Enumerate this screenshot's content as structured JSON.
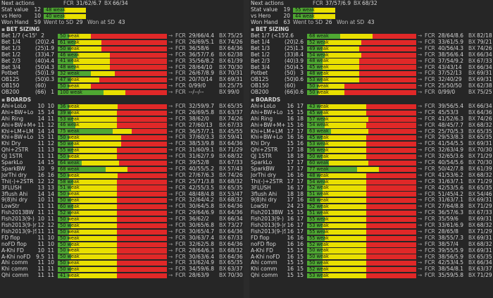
{
  "panels": [
    {
      "next": {
        "label": "Next actions",
        "fcr": "31/62/6.7",
        "bx": "66/34"
      },
      "stat": {
        "label": "Stat value",
        "n": "12",
        "weak": "48 weak"
      },
      "hero": {
        "label": "vs Hero",
        "n": "10",
        "weak": "40 weak"
      },
      "won": {
        "label": "Won Hand",
        "n": "59",
        "went_label": "Went to SD",
        "went": "29",
        "sd_label": "Won at SD",
        "sd": "43"
      },
      "bet_title": "BET SIZING",
      "bets": [
        {
          "label": "Bet 1/7 (<15%)",
          "n1": "2",
          "n2": "",
          "weak": "50 weak",
          "g": 0.1,
          "y": 0.2,
          "fcr": "29/66/4.4",
          "bx": "75/25"
        },
        {
          "label": "Bet 1/4",
          "n1": "(20)",
          "n2": "2.4",
          "weak": "61 weak",
          "g": 0.16,
          "y": 0.24,
          "fcr": "26/69/5.1",
          "bx": "74/26"
        },
        {
          "label": "Bet 1/3",
          "n1": "(25)",
          "n2": "1.9",
          "weak": "50 weak",
          "g": 0.12,
          "y": 0.28,
          "fcr": "36/58/6",
          "bx": "64/36"
        },
        {
          "label": "Bet 1/2",
          "n1": "(33)",
          "n2": "4.7",
          "weak": "46 weak",
          "g": 0.18,
          "y": 0.3,
          "fcr": "36/57/7.6",
          "bx": "62/38"
        },
        {
          "label": "Bet 2/3",
          "n1": "(40)",
          "n2": "4.4",
          "weak": "41 weak",
          "g": 0.14,
          "y": 0.34,
          "fcr": "35/56/8.2",
          "bx": "61/39"
        },
        {
          "label": "Bet 3/4",
          "n1": "(50)",
          "n2": "4.3",
          "weak": "48 weak",
          "g": 0.16,
          "y": 0.32,
          "fcr": "28/64/10",
          "bx": "70/30"
        },
        {
          "label": "Potbet",
          "n1": "(50)",
          "n2": "1.9",
          "weak": "32 weak",
          "g": 0.3,
          "y": 0.22,
          "fcr": "26/67/8.9",
          "bx": "70/31"
        },
        {
          "label": "OB125",
          "n1": "(50)",
          "n2": "0.3",
          "weak": "47 weak",
          "g": 0.12,
          "y": 0.26,
          "fcr": "20/70/14",
          "bx": "69/31"
        },
        {
          "label": "OB150",
          "n1": "(60)",
          "n2": "",
          "weak": "50 weak",
          "g": 0.1,
          "y": 0.2,
          "fcr": "0/99/0",
          "bx": "25/75"
        },
        {
          "label": "OB200",
          "n1": "(66)",
          "n2": "1",
          "weak": "100 weak",
          "g": 0.42,
          "y": 0.2,
          "fcr": "--/--/--",
          "bx": "99/0"
        }
      ],
      "boards_title": "BOARDS",
      "boards": [
        {
          "label": "Ahi+LoLo",
          "n1": "10",
          "n2": "10",
          "weak": "36 weak",
          "g": 0.1,
          "y": 0.45,
          "fcr": "32/59/9.7",
          "bx": "65/35"
        },
        {
          "label": "Ahi+BW+Lo",
          "n1": "15",
          "n2": "14",
          "weak": "39 weak",
          "g": 0.12,
          "y": 0.42,
          "fcr": "26/69/5.8",
          "bx": "63/37"
        },
        {
          "label": "Ahi Ring",
          "n1": "14",
          "n2": "11",
          "weak": "53 weak",
          "g": 0.14,
          "y": 0.4,
          "fcr": "38/62/0",
          "bx": "74/26"
        },
        {
          "label": "Ahi+BW+M+FD",
          "n1": "11",
          "n2": "12",
          "weak": "46 weak",
          "g": 0.16,
          "y": 0.38,
          "fcr": "27/60/13",
          "bx": "67/33"
        },
        {
          "label": "Khi+LM+LM",
          "n1": "14",
          "n2": "14",
          "weak": "75 weak",
          "g": 0.5,
          "y": 0.18,
          "fcr": "36/57/7.1",
          "bx": "45/55"
        },
        {
          "label": "Khi+BW+Lo",
          "n1": "15",
          "n2": "11",
          "weak": "50 weak",
          "g": 0.1,
          "y": 0.48,
          "fcr": "37/60/3.3",
          "bx": "59/41"
        },
        {
          "label": "Khi Dry",
          "n1": "11",
          "n2": "12",
          "weak": "50 weak",
          "g": 0.14,
          "y": 0.44,
          "fcr": "38/53/9.8",
          "bx": "64/36"
        },
        {
          "label": "Qhi+2STR",
          "n1": "11",
          "n2": "13",
          "weak": "55 weak",
          "g": 0.14,
          "y": 0.4,
          "fcr": "31/60/9.1",
          "bx": "71/29"
        },
        {
          "label": "QJ 1STR",
          "n1": "11",
          "n2": "11",
          "weak": "50 weak",
          "g": 0.1,
          "y": 0.44,
          "fcr": "31/62/7.9",
          "bx": "68/32"
        },
        {
          "label": "SparkLo",
          "n1": "14",
          "n2": "15",
          "weak": "64 weak",
          "g": 0.22,
          "y": 0.34,
          "fcr": "39/52/8",
          "bx": "67/33"
        },
        {
          "label": "SparkBW",
          "n1": "10",
          "n2": "9",
          "weak": "68 weak",
          "g": 0.44,
          "y": 0.2,
          "fcr": "40/55/5.2",
          "bx": "57/43"
        },
        {
          "label": "JorThi dry",
          "n1": "16",
          "n2": "16",
          "weak": "50 weak",
          "g": 0.1,
          "y": 0.45,
          "fcr": "27/67/6.3",
          "bx": "74/26"
        },
        {
          "label": "Thi(-)+2STR",
          "n1": "12",
          "n2": "12",
          "weak": "58 weak",
          "g": 0.14,
          "y": 0.4,
          "fcr": "25/71/3.8",
          "bx": "68/32"
        },
        {
          "label": "3FLUSH",
          "n1": "13",
          "n2": "13",
          "weak": "51 weak",
          "g": 0.12,
          "y": 0.42,
          "fcr": "42/55/3.5",
          "bx": "65/35"
        },
        {
          "label": "3flush Ahi",
          "n1": "14",
          "n2": "14",
          "weak": "50 weak",
          "g": 0.1,
          "y": 0.44,
          "fcr": "48/48/4.8",
          "bx": "53/47"
        },
        {
          "label": "9(8)hi dry",
          "n1": "10",
          "n2": "11",
          "weak": "50 weak",
          "g": 0.12,
          "y": 0.42,
          "fcr": "32/64/4.2",
          "bx": "68/32"
        },
        {
          "label": "LowStr",
          "n1": "11",
          "n2": "11",
          "weak": "60 weak",
          "g": 0.14,
          "y": 0.4,
          "fcr": "30/64/5.8",
          "bx": "64/36"
        },
        {
          "label": "Fish2013BW",
          "n1": "11",
          "n2": "11",
          "weak": "52 weak",
          "g": 0.12,
          "y": 0.42,
          "fcr": "29/64/6.9",
          "bx": "64/36"
        },
        {
          "label": "Fish2013(9-)",
          "n1": "10",
          "n2": "11",
          "weak": "50 weak",
          "g": 0.1,
          "y": 0.44,
          "fcr": "36/62/2",
          "bx": "66/34"
        },
        {
          "label": "Fish2013(9-)noSTR",
          "n1": "12",
          "n2": "12",
          "weak": "50 weak",
          "g": 0.12,
          "y": 0.42,
          "fcr": "30/65/6.8",
          "bx": "73/27"
        },
        {
          "label": "Fish2013(9-)STR",
          "n1": "11",
          "n2": "11",
          "weak": "50 weak",
          "g": 0.1,
          "y": 0.44,
          "fcr": "30/65/4.7",
          "bx": "64/36"
        },
        {
          "label": "FD flop",
          "n1": "11",
          "n2": "10",
          "weak": "50 weak",
          "g": 0.1,
          "y": 0.44,
          "fcr": "30/63/7.4",
          "bx": "67/33"
        },
        {
          "label": "noFD flop",
          "n1": "11",
          "n2": "10",
          "weak": "50 weak",
          "g": 0.12,
          "y": 0.42,
          "fcr": "32/62/5.8",
          "bx": "64/36"
        },
        {
          "label": "A-Khi FD",
          "n1": "10",
          "n2": "11",
          "weak": "50 weak",
          "g": 0.1,
          "y": 0.44,
          "fcr": "28/64/6.3",
          "bx": "68/32"
        },
        {
          "label": "A-Khi noFD",
          "n1": "9.5",
          "n2": "11",
          "weak": "50 weak",
          "g": 0.12,
          "y": 0.42,
          "fcr": "30/63/6.4",
          "bx": "64/36"
        },
        {
          "label": "Ahi comm",
          "n1": "11",
          "n2": "10",
          "weak": "50 weak",
          "g": 0.1,
          "y": 0.44,
          "fcr": "33/62/4.9",
          "bx": "65/35"
        },
        {
          "label": "Khi comm",
          "n1": "11",
          "n2": "11",
          "weak": "50 weak",
          "g": 0.12,
          "y": 0.42,
          "fcr": "34/59/6.8",
          "bx": "63/37"
        },
        {
          "label": "Qhi comm",
          "n1": "11",
          "n2": "11",
          "weak": "41 weak",
          "g": 0.1,
          "y": 0.44,
          "fcr": "28/63/9",
          "bx": "70/30"
        }
      ]
    },
    {
      "next": {
        "label": "Next actions",
        "fcr": "37/57/6.9",
        "bx": "68/32"
      },
      "stat": {
        "label": "Stat value",
        "n": "19",
        "weak": "55 weak"
      },
      "hero": {
        "label": "vs Hero",
        "n": "20",
        "weak": "44 weak"
      },
      "won": {
        "label": "Won Hand",
        "n": "63",
        "went_label": "Went to SD",
        "went": "26",
        "sd_label": "Won at SD",
        "sd": "43"
      },
      "bet_title": "BET SIZING",
      "bets": [
        {
          "label": "Bet 1/7 (<15%)",
          "n1": "2.6",
          "n2": "",
          "weak": "68 weak",
          "g": 0.3,
          "y": 0.3,
          "fcr": "28/64/8.6",
          "bx": "82/18"
        },
        {
          "label": "Bet 1/4",
          "n1": "(20)",
          "n2": "2.6",
          "weak": "52 weak",
          "g": 0.16,
          "y": 0.34,
          "fcr": "33/61/5.9",
          "bx": "79/21"
        },
        {
          "label": "Bet 1/3",
          "n1": "(25)",
          "n2": "1.3",
          "weak": "49 weak",
          "g": 0.14,
          "y": 0.34,
          "fcr": "40/56/4.3",
          "bx": "74/26"
        },
        {
          "label": "Bet 1/2",
          "n1": "(33)",
          "n2": "8.4",
          "weak": "54 weak",
          "g": 0.16,
          "y": 0.34,
          "fcr": "38/56/6.4",
          "bx": "66/34"
        },
        {
          "label": "Bet 2/3",
          "n1": "(40)",
          "n2": "3.9",
          "weak": "48 weak",
          "g": 0.14,
          "y": 0.34,
          "fcr": "37/54/9.2",
          "bx": "67/33"
        },
        {
          "label": "Bet 3/4",
          "n1": "(50)",
          "n2": "4.5",
          "weak": "45 weak",
          "g": 0.14,
          "y": 0.34,
          "fcr": "43/43/14",
          "bx": "66/34"
        },
        {
          "label": "Potbet",
          "n1": "(50)",
          "n2": "3",
          "weak": "48 weak",
          "g": 0.14,
          "y": 0.34,
          "fcr": "37/52/13",
          "bx": "69/31"
        },
        {
          "label": "OB125",
          "n1": "(50)",
          "n2": "0.6",
          "weak": "53 weak",
          "g": 0.14,
          "y": 0.34,
          "fcr": "32/40/29",
          "bx": "69/31"
        },
        {
          "label": "OB150",
          "n1": "(60)",
          "n2": "",
          "weak": "50 weak",
          "g": 0.1,
          "y": 0.24,
          "fcr": "25/50/50",
          "bx": "62/38"
        },
        {
          "label": "OB200",
          "n1": "(66)",
          "n2": "0.6",
          "weak": "50 weak",
          "g": 0.1,
          "y": 0.24,
          "fcr": "0/99/0",
          "bx": "75/25"
        }
      ],
      "boards_title": "BOARDS",
      "boards": [
        {
          "label": "Ahi+LoLo",
          "n1": "16",
          "n2": "17",
          "weak": "43 weak",
          "g": 0.12,
          "y": 0.42,
          "fcr": "39/56/5.4",
          "bx": "66/34"
        },
        {
          "label": "Ahi+BW+Lo",
          "n1": "15",
          "n2": "15",
          "weak": "45 weak",
          "g": 0.14,
          "y": 0.4,
          "fcr": "45/53/3",
          "bx": "64/36"
        },
        {
          "label": "Ahi Ring",
          "n1": "16",
          "n2": "18",
          "weak": "57 weak",
          "g": 0.16,
          "y": 0.4,
          "fcr": "41/52/6.3",
          "bx": "74/26"
        },
        {
          "label": "Ahi+BW+M+FD",
          "n1": "15",
          "n2": "16",
          "weak": "54 weak",
          "g": 0.16,
          "y": 0.38,
          "fcr": "48/45/7.7",
          "bx": "68/32"
        },
        {
          "label": "Khi+LM+LM",
          "n1": "17",
          "n2": "17",
          "weak": "63 weak",
          "g": 0.22,
          "y": 0.34,
          "fcr": "25/70/5.3",
          "bx": "65/35"
        },
        {
          "label": "Khi+BW+Lo",
          "n1": "16",
          "n2": "16",
          "weak": "45 weak",
          "g": 0.14,
          "y": 0.4,
          "fcr": "29/53/8.3",
          "bx": "65/35"
        },
        {
          "label": "Khi Dry",
          "n1": "15",
          "n2": "16",
          "weak": "53 weak",
          "g": 0.16,
          "y": 0.38,
          "fcr": "41/54/5.5",
          "bx": "69/31"
        },
        {
          "label": "Qhi+2STR",
          "n1": "17",
          "n2": "18",
          "weak": "56 weak",
          "g": 0.16,
          "y": 0.38,
          "fcr": "32/63/4.9",
          "bx": "70/30"
        },
        {
          "label": "QJ 1STR",
          "n1": "18",
          "n2": "18",
          "weak": "50 weak",
          "g": 0.14,
          "y": 0.4,
          "fcr": "32/65/3.6",
          "bx": "71/29"
        },
        {
          "label": "SparkLo",
          "n1": "17",
          "n2": "17",
          "weak": "60 weak",
          "g": 0.2,
          "y": 0.36,
          "fcr": "40/54/5.6",
          "bx": "70/30"
        },
        {
          "label": "SparkBW",
          "n1": "17",
          "n2": "17",
          "weak": "77 weak",
          "g": 0.46,
          "y": 0.2,
          "fcr": "50/42/7.8",
          "bx": "61/39"
        },
        {
          "label": "JorThi dry",
          "n1": "16",
          "n2": "16",
          "weak": "48 weak",
          "g": 0.12,
          "y": 0.42,
          "fcr": "41/53/6.2",
          "bx": "68/32"
        },
        {
          "label": "Thi(-)+2STR",
          "n1": "17",
          "n2": "17",
          "weak": "54 weak",
          "g": 0.16,
          "y": 0.38,
          "fcr": "31/63/7.1",
          "bx": "71/29"
        },
        {
          "label": "3FLUSH",
          "n1": "16",
          "n2": "17",
          "weak": "52 weak",
          "g": 0.14,
          "y": 0.4,
          "fcr": "42/53/5.6",
          "bx": "65/35"
        },
        {
          "label": "3flush Ahi",
          "n1": "18",
          "n2": "18",
          "weak": "51 weak",
          "g": 0.14,
          "y": 0.4,
          "fcr": "51/45/4.2",
          "bx": "54/46"
        },
        {
          "label": "9(8)hi dry",
          "n1": "17",
          "n2": "16",
          "weak": "48 weak",
          "g": 0.12,
          "y": 0.42,
          "fcr": "31/63/7.1",
          "bx": "69/31"
        },
        {
          "label": "LowStr",
          "n1": "24",
          "n2": "23",
          "weak": "52 weak",
          "g": 0.14,
          "y": 0.4,
          "fcr": "27/64/8.8",
          "bx": "71/29"
        },
        {
          "label": "Fish2013BW",
          "n1": "15",
          "n2": "15",
          "weak": "51 weak",
          "g": 0.14,
          "y": 0.4,
          "fcr": "36/57/6.3",
          "bx": "67/33"
        },
        {
          "label": "Fish2013(9-)",
          "n1": "16",
          "n2": "17",
          "weak": "55 weak",
          "g": 0.16,
          "y": 0.38,
          "fcr": "35/59/6",
          "bx": "69/31"
        },
        {
          "label": "Fish2013(9-)noSTR",
          "n1": "16",
          "n2": "17",
          "weak": "53 weak",
          "g": 0.14,
          "y": 0.4,
          "fcr": "33/61/6.9",
          "bx": "68/32"
        },
        {
          "label": "Fish2013(9-)STR",
          "n1": "16",
          "n2": "17",
          "weak": "55 weak",
          "g": 0.16,
          "y": 0.38,
          "fcr": "28/65/8",
          "bx": "71/29"
        },
        {
          "label": "FD flop",
          "n1": "16",
          "n2": "16",
          "weak": "55 weak",
          "g": 0.16,
          "y": 0.38,
          "fcr": "38/55/7.3",
          "bx": "69/31"
        },
        {
          "label": "noFD flop",
          "n1": "16",
          "n2": "16",
          "weak": "52 weak",
          "g": 0.14,
          "y": 0.4,
          "fcr": "38/57/4",
          "bx": "68/32"
        },
        {
          "label": "A-Khi FD",
          "n1": "15",
          "n2": "15",
          "weak": "50 weak",
          "g": 0.14,
          "y": 0.4,
          "fcr": "39/55/5.9",
          "bx": "69/31"
        },
        {
          "label": "A-Khi noFD",
          "n1": "16",
          "n2": "15",
          "weak": "50 weak",
          "g": 0.14,
          "y": 0.4,
          "fcr": "38/56/5.9",
          "bx": "65/35"
        },
        {
          "label": "Ahi comm",
          "n1": "15",
          "n2": "15",
          "weak": "50 weak",
          "g": 0.14,
          "y": 0.4,
          "fcr": "42/53/4.5",
          "bx": "66/34"
        },
        {
          "label": "Khi comm",
          "n1": "16",
          "n2": "15",
          "weak": "52 weak",
          "g": 0.14,
          "y": 0.4,
          "fcr": "38/54/8.1",
          "bx": "63/37"
        },
        {
          "label": "Qhi comm",
          "n1": "15",
          "n2": "15",
          "weak": "53 weak",
          "g": 0.14,
          "y": 0.4,
          "fcr": "35/59/5.8",
          "bx": "71/29"
        }
      ]
    }
  ],
  "labels": {
    "fcr": "FCR",
    "bx": "BX",
    "arrow": "→"
  },
  "colors": {
    "green": "#4fa832",
    "yellow": "#e9e000",
    "red": "#e02828",
    "background": "#262626"
  }
}
